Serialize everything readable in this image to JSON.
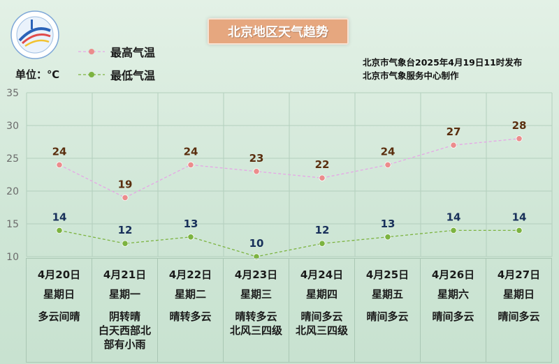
{
  "page_title": "北京地区天气趋势",
  "unit_label": "单位：℃",
  "issuer": {
    "line1": "北京市气象台2025年4月19日11时发布",
    "line2": "北京市气象服务中心制作"
  },
  "legend": [
    {
      "label": "最高气温",
      "color": "#eb8c8c",
      "line_color": "#e6a6e6"
    },
    {
      "label": "最低气温",
      "color": "#7cb340",
      "line_color": "#7cb340"
    }
  ],
  "chart_data": {
    "type": "line",
    "ylim": [
      10,
      35
    ],
    "yticks": [
      10,
      15,
      20,
      25,
      30,
      35
    ],
    "grid": true,
    "legend_position": "top-left",
    "series": [
      {
        "name": "最高气温",
        "values": [
          24,
          19,
          24,
          23,
          22,
          24,
          27,
          28
        ],
        "line_style": "dashed",
        "color": "#e6a6e6",
        "marker_color": "#eb8c8c",
        "label_color": "#5a2e0e"
      },
      {
        "name": "最低气温",
        "values": [
          14,
          12,
          13,
          10,
          12,
          13,
          14,
          14
        ],
        "line_style": "dashed",
        "color": "#7cb340",
        "marker_color": "#7cb340",
        "label_color": "#18305a"
      }
    ]
  },
  "days": [
    {
      "date": "4月20日",
      "weekday": "星期日",
      "weather": [
        "多云间晴"
      ]
    },
    {
      "date": "4月21日",
      "weekday": "星期一",
      "weather": [
        "阴转晴",
        "白天西部北",
        "部有小雨"
      ]
    },
    {
      "date": "4月22日",
      "weekday": "星期二",
      "weather": [
        "晴转多云"
      ]
    },
    {
      "date": "4月23日",
      "weekday": "星期三",
      "weather": [
        "晴转多云",
        "北风三四级"
      ]
    },
    {
      "date": "4月24日",
      "weekday": "星期四",
      "weather": [
        "晴间多云",
        "北风三四级"
      ]
    },
    {
      "date": "4月25日",
      "weekday": "星期五",
      "weather": [
        "晴间多云"
      ]
    },
    {
      "date": "4月26日",
      "weekday": "星期六",
      "weather": [
        "晴间多云"
      ]
    },
    {
      "date": "4月27日",
      "weekday": "星期日",
      "weather": [
        "晴间多云"
      ]
    }
  ]
}
